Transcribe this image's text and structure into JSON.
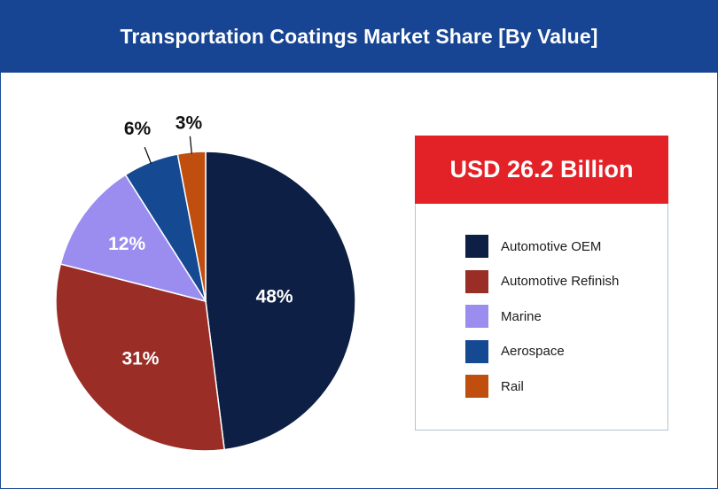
{
  "header": {
    "title": "Transportation Coatings Market Share [By Value]"
  },
  "total": {
    "label": "USD 26.2 Billion"
  },
  "chart_data": {
    "type": "pie",
    "title": "Transportation Coatings Market Share [By Value]",
    "categories": [
      "Automotive OEM",
      "Automotive Refinish",
      "Marine",
      "Aerospace",
      "Rail"
    ],
    "values": [
      48,
      31,
      12,
      6,
      3
    ],
    "labels": [
      "48%",
      "31%",
      "12%",
      "6%",
      "3%"
    ],
    "colors": [
      "#0d1f44",
      "#9a2e27",
      "#9b8def",
      "#154a92",
      "#c04f0f"
    ],
    "start": "12 o'clock, clockwise",
    "legend_position": "right"
  }
}
